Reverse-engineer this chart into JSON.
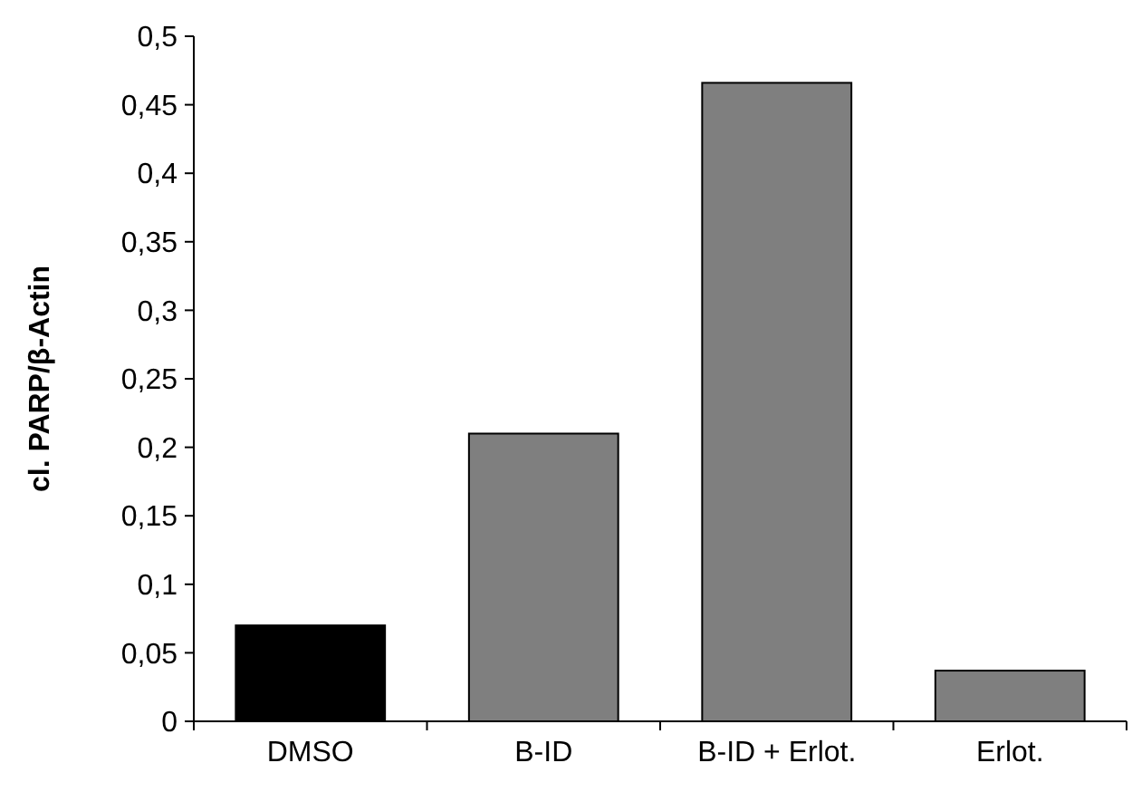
{
  "chart_data": {
    "type": "bar",
    "ylabel": "cl. PARP/β-Actin",
    "categories": [
      "DMSO",
      "B-ID",
      "B-ID + Erlot.",
      "Erlot."
    ],
    "values": [
      0.07,
      0.21,
      0.466,
      0.037
    ],
    "colors": [
      "#000000",
      "#7f7f7f",
      "#7f7f7f",
      "#7f7f7f"
    ],
    "ylim": [
      0,
      0.5
    ],
    "yticks": [
      0,
      {
        "value": 0.05,
        "label": "0,05"
      },
      {
        "value": 0.1,
        "label": "0,1"
      },
      {
        "value": 0.15,
        "label": "0,15"
      },
      {
        "value": 0.2,
        "label": "0,2"
      },
      {
        "value": 0.25,
        "label": "0,25"
      },
      {
        "value": 0.3,
        "label": "0,3"
      },
      {
        "value": 0.35,
        "label": "0,35"
      },
      {
        "value": 0.4,
        "label": "0,4"
      },
      {
        "value": 0.45,
        "label": "0,45"
      },
      {
        "value": 0.5,
        "label": "0,5"
      }
    ],
    "grid": false
  }
}
